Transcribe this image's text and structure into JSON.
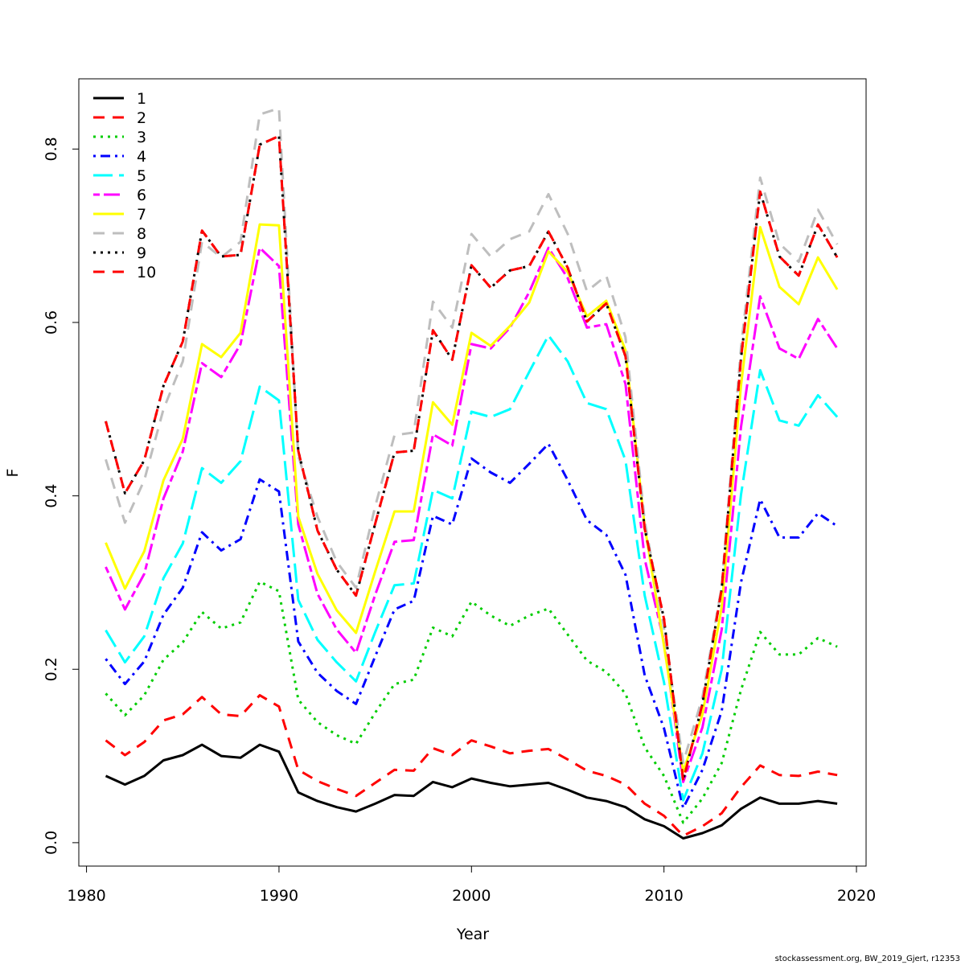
{
  "chart_data": {
    "type": "line",
    "title": "",
    "xlabel": "Year",
    "ylabel": "F",
    "xlim": [
      1979.6,
      2020.5
    ],
    "ylim": [
      -0.027,
      0.881
    ],
    "xticks": [
      1980,
      1990,
      2000,
      2010,
      2020
    ],
    "yticks": [
      0.0,
      0.2,
      0.4,
      0.6,
      0.8
    ],
    "xtick_labels": [
      "1980",
      "1990",
      "2000",
      "2010",
      "2020"
    ],
    "ytick_labels": [
      "0.0",
      "0.2",
      "0.4",
      "0.6",
      "0.8"
    ],
    "legend_position": "top-left",
    "grid": false,
    "x": [
      1981,
      1982,
      1983,
      1984,
      1985,
      1986,
      1987,
      1988,
      1989,
      1990,
      1991,
      1992,
      1993,
      1994,
      1995,
      1996,
      1997,
      1998,
      1999,
      2000,
      2001,
      2002,
      2003,
      2004,
      2005,
      2006,
      2007,
      2008,
      2009,
      2010,
      2011,
      2012,
      2013,
      2014,
      2015,
      2016,
      2017,
      2018,
      2019
    ],
    "series": [
      {
        "name": "1",
        "color": "#000000",
        "dash": "solid",
        "width": 3,
        "values": [
          0.077,
          0.067,
          0.077,
          0.095,
          0.101,
          0.113,
          0.1,
          0.098,
          0.113,
          0.105,
          0.058,
          0.048,
          0.041,
          0.036,
          0.045,
          0.055,
          0.054,
          0.07,
          0.064,
          0.074,
          0.069,
          0.065,
          0.067,
          0.069,
          0.061,
          0.052,
          0.048,
          0.041,
          0.027,
          0.019,
          0.005,
          0.011,
          0.02,
          0.039,
          0.052,
          0.045,
          0.045,
          0.048,
          0.045
        ]
      },
      {
        "name": "2",
        "color": "#FF0000",
        "dash": "dashed",
        "width": 3,
        "values": [
          0.118,
          0.101,
          0.116,
          0.141,
          0.148,
          0.168,
          0.148,
          0.146,
          0.17,
          0.157,
          0.084,
          0.071,
          0.062,
          0.054,
          0.069,
          0.084,
          0.083,
          0.109,
          0.101,
          0.118,
          0.111,
          0.103,
          0.106,
          0.108,
          0.096,
          0.083,
          0.077,
          0.067,
          0.045,
          0.031,
          0.008,
          0.019,
          0.034,
          0.064,
          0.089,
          0.078,
          0.077,
          0.082,
          0.078
        ]
      },
      {
        "name": "3",
        "color": "#00CD00",
        "dash": "dotted",
        "width": 3,
        "values": [
          0.172,
          0.147,
          0.17,
          0.211,
          0.231,
          0.266,
          0.247,
          0.254,
          0.301,
          0.29,
          0.165,
          0.139,
          0.124,
          0.114,
          0.15,
          0.183,
          0.188,
          0.248,
          0.238,
          0.278,
          0.262,
          0.25,
          0.262,
          0.27,
          0.24,
          0.21,
          0.197,
          0.172,
          0.11,
          0.077,
          0.023,
          0.051,
          0.092,
          0.176,
          0.243,
          0.217,
          0.217,
          0.236,
          0.226
        ]
      },
      {
        "name": "4",
        "color": "#0000FF",
        "dash": "dotdash",
        "width": 3,
        "values": [
          0.212,
          0.183,
          0.209,
          0.263,
          0.294,
          0.358,
          0.337,
          0.35,
          0.419,
          0.405,
          0.232,
          0.196,
          0.175,
          0.16,
          0.215,
          0.269,
          0.279,
          0.377,
          0.367,
          0.443,
          0.427,
          0.415,
          0.437,
          0.46,
          0.418,
          0.372,
          0.355,
          0.309,
          0.193,
          0.132,
          0.04,
          0.084,
          0.152,
          0.3,
          0.396,
          0.352,
          0.352,
          0.38,
          0.365
        ]
      },
      {
        "name": "5",
        "color": "#00FFFF",
        "dash": "longdash",
        "width": 3,
        "values": [
          0.245,
          0.208,
          0.238,
          0.305,
          0.345,
          0.432,
          0.415,
          0.44,
          0.526,
          0.51,
          0.28,
          0.234,
          0.208,
          0.186,
          0.243,
          0.297,
          0.299,
          0.407,
          0.397,
          0.497,
          0.491,
          0.5,
          0.543,
          0.585,
          0.555,
          0.507,
          0.5,
          0.441,
          0.285,
          0.185,
          0.049,
          0.103,
          0.2,
          0.401,
          0.545,
          0.487,
          0.481,
          0.516,
          0.491
        ]
      },
      {
        "name": "6",
        "color": "#FF00FF",
        "dash": "twodash",
        "width": 3,
        "values": [
          0.318,
          0.269,
          0.31,
          0.397,
          0.451,
          0.553,
          0.537,
          0.575,
          0.686,
          0.665,
          0.367,
          0.287,
          0.246,
          0.219,
          0.286,
          0.347,
          0.349,
          0.471,
          0.458,
          0.575,
          0.57,
          0.594,
          0.635,
          0.686,
          0.651,
          0.594,
          0.598,
          0.529,
          0.327,
          0.232,
          0.07,
          0.133,
          0.246,
          0.479,
          0.63,
          0.57,
          0.558,
          0.604,
          0.57
        ]
      },
      {
        "name": "7",
        "color": "#FFFF00",
        "dash": "solid",
        "width": 3,
        "values": [
          0.346,
          0.293,
          0.336,
          0.418,
          0.466,
          0.575,
          0.56,
          0.588,
          0.713,
          0.712,
          0.376,
          0.31,
          0.268,
          0.242,
          0.313,
          0.382,
          0.382,
          0.508,
          0.482,
          0.588,
          0.573,
          0.596,
          0.623,
          0.682,
          0.658,
          0.607,
          0.625,
          0.568,
          0.365,
          0.227,
          0.082,
          0.148,
          0.272,
          0.527,
          0.71,
          0.641,
          0.621,
          0.675,
          0.638
        ]
      },
      {
        "name": "8",
        "color": "#BEBEBE",
        "dash": "dashed",
        "width": 3,
        "values": [
          0.442,
          0.369,
          0.418,
          0.5,
          0.555,
          0.693,
          0.675,
          0.693,
          0.84,
          0.847,
          0.446,
          0.376,
          0.324,
          0.294,
          0.388,
          0.47,
          0.473,
          0.624,
          0.594,
          0.702,
          0.676,
          0.696,
          0.705,
          0.748,
          0.702,
          0.636,
          0.654,
          0.583,
          0.371,
          0.247,
          0.092,
          0.168,
          0.296,
          0.571,
          0.767,
          0.691,
          0.67,
          0.73,
          0.69
        ]
      },
      {
        "name": "9",
        "color": "#000000",
        "dash": "dotted",
        "width": 3,
        "values": [
          0.486,
          0.403,
          0.441,
          0.527,
          0.578,
          0.706,
          0.676,
          0.678,
          0.805,
          0.815,
          0.452,
          0.36,
          0.315,
          0.285,
          0.368,
          0.45,
          0.452,
          0.591,
          0.557,
          0.666,
          0.64,
          0.66,
          0.665,
          0.705,
          0.663,
          0.601,
          0.622,
          0.561,
          0.362,
          0.258,
          0.072,
          0.16,
          0.293,
          0.558,
          0.751,
          0.676,
          0.654,
          0.713,
          0.675
        ]
      },
      {
        "name": "10",
        "color": "#FF0000",
        "dash": "dashed",
        "width": 3,
        "values": [
          0.486,
          0.403,
          0.441,
          0.527,
          0.578,
          0.706,
          0.676,
          0.678,
          0.805,
          0.815,
          0.452,
          0.36,
          0.315,
          0.285,
          0.368,
          0.45,
          0.452,
          0.591,
          0.557,
          0.666,
          0.64,
          0.66,
          0.665,
          0.705,
          0.663,
          0.601,
          0.622,
          0.561,
          0.362,
          0.258,
          0.072,
          0.16,
          0.293,
          0.558,
          0.751,
          0.676,
          0.654,
          0.713,
          0.675
        ]
      }
    ]
  },
  "footer": "stockassessment.org, BW_2019_Gjert, r12353"
}
